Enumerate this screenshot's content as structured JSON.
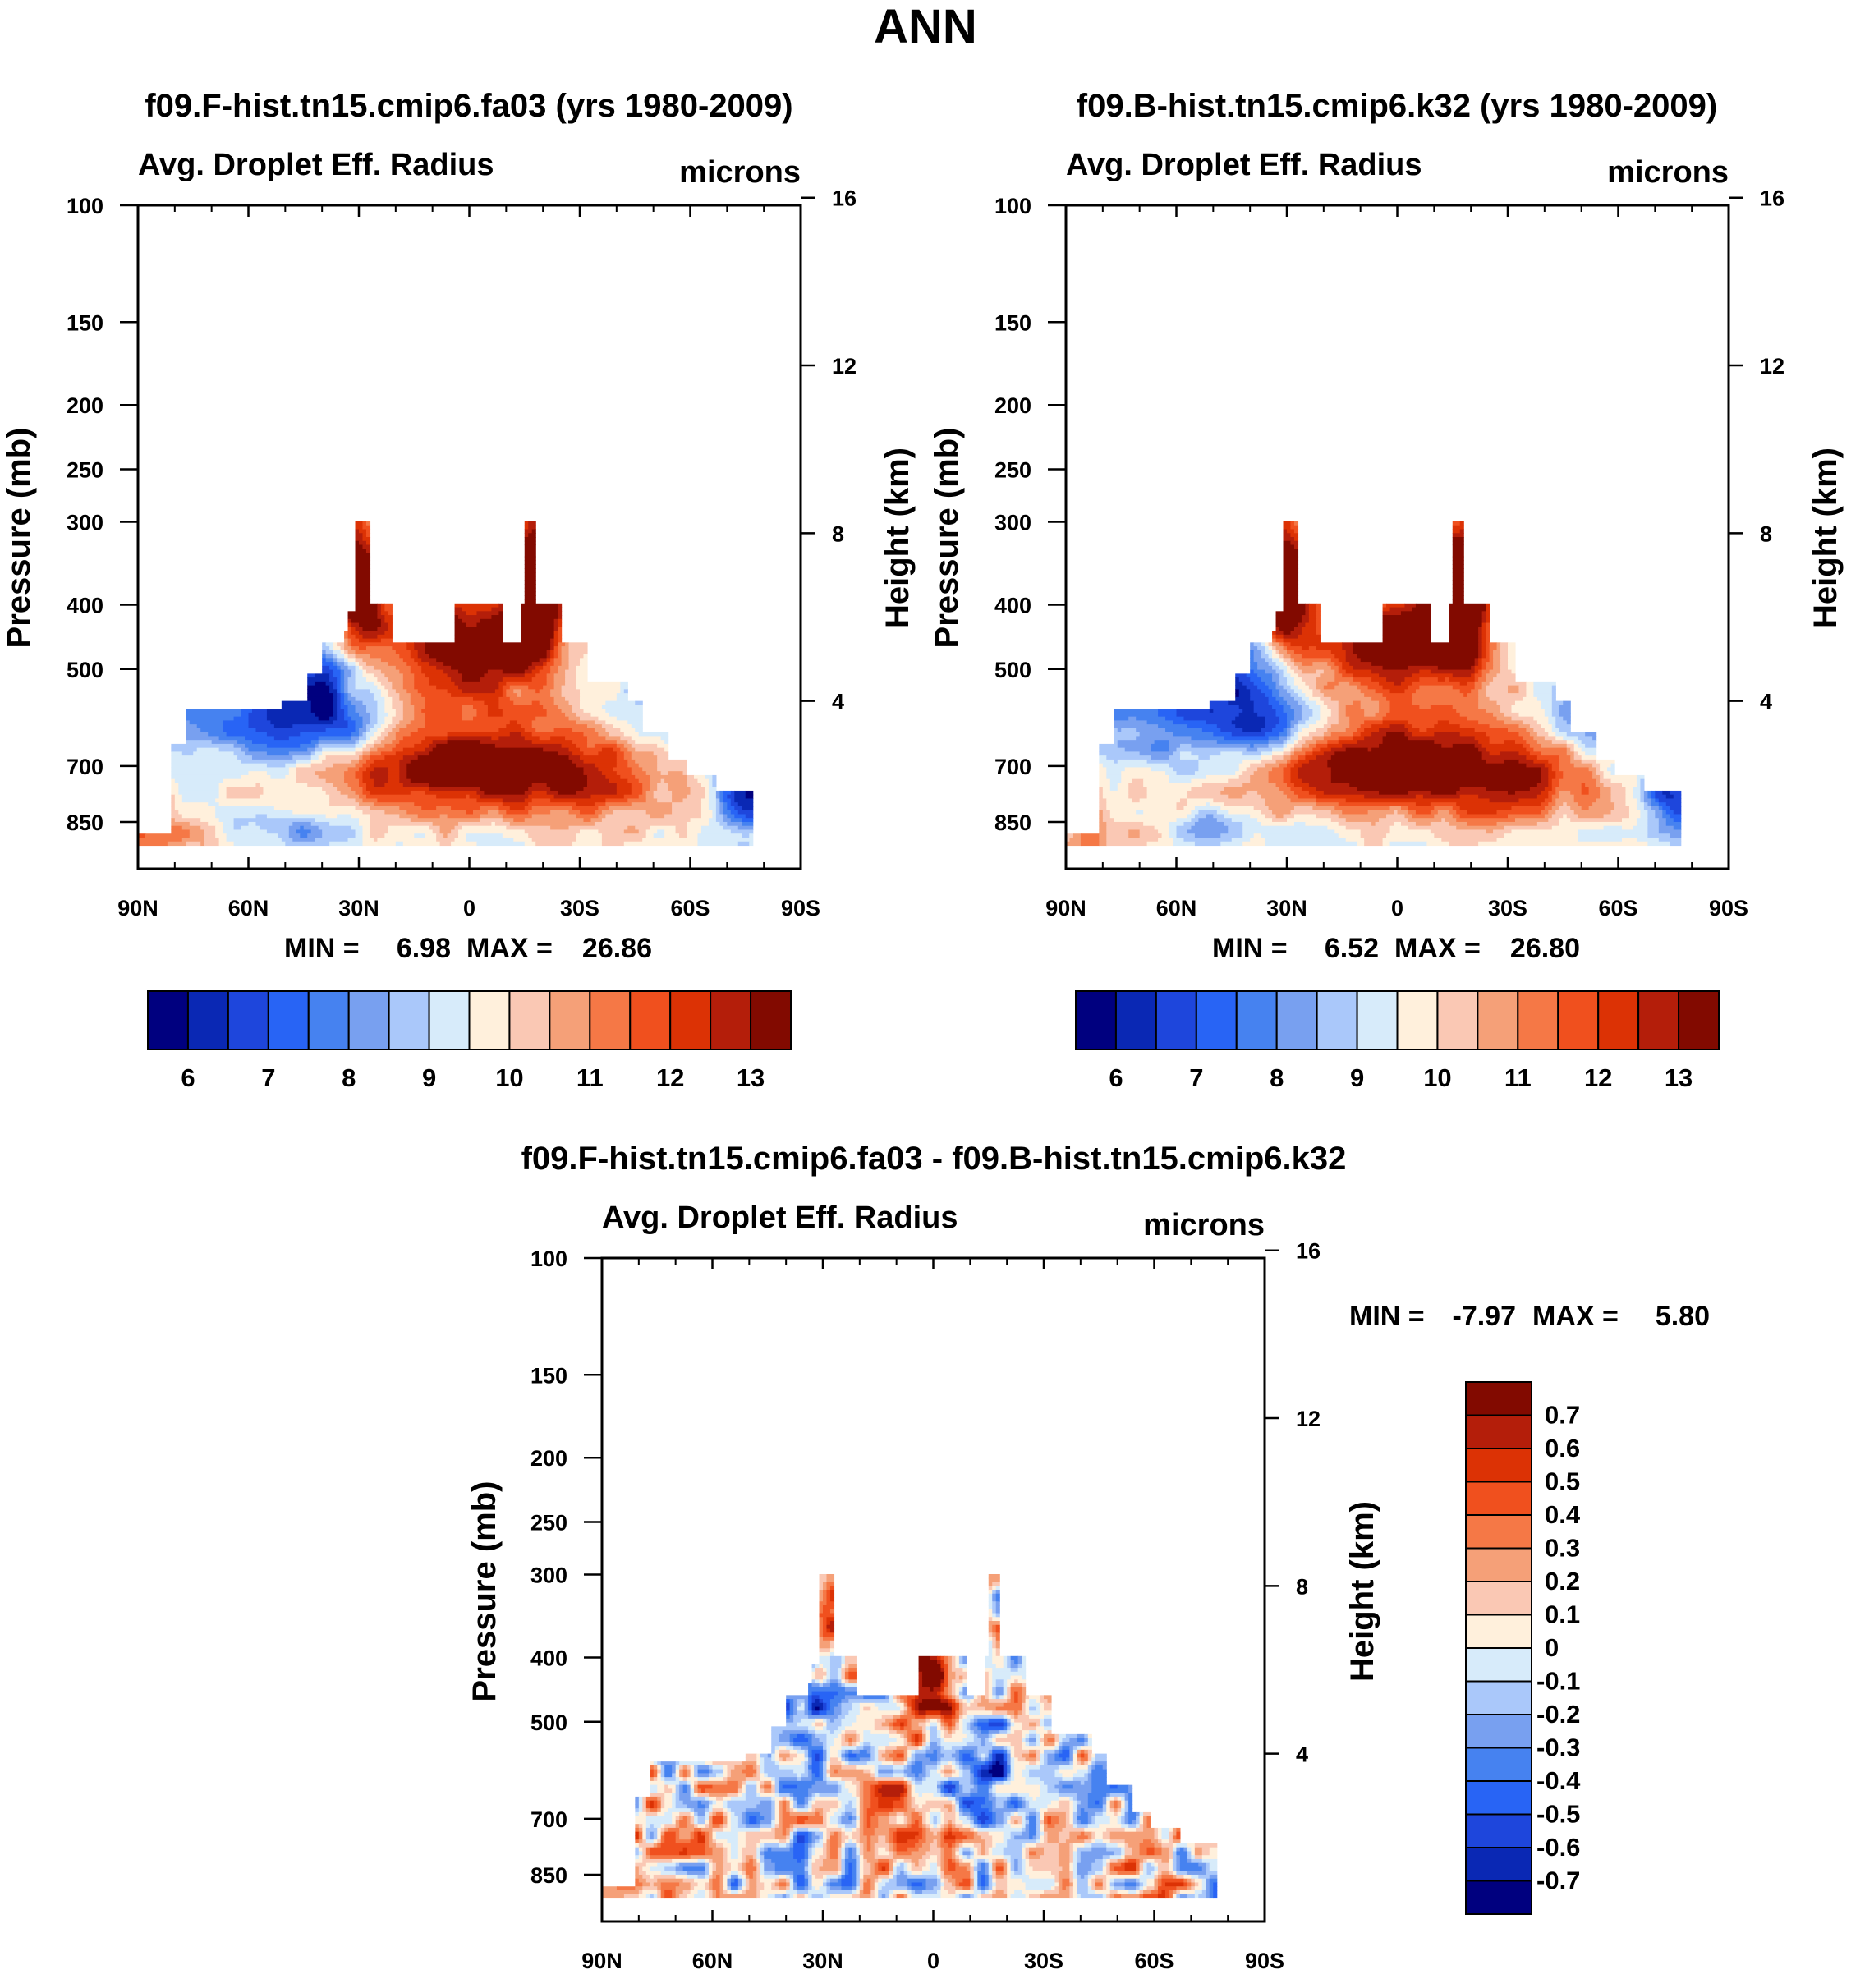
{
  "title": "ANN",
  "chart_data": [
    {
      "type": "heatmap",
      "title": "f09.F-hist.tn15.cmip6.fa03 (yrs 1980-2009)",
      "left_string": "Avg. Droplet Eff. Radius",
      "right_string": "microns",
      "xlabel": "",
      "ylabel": "Pressure (mb)",
      "ylabel_right": "Height (km)",
      "x_ticks": [
        "90N",
        "60N",
        "30N",
        "0",
        "30S",
        "60S",
        "90S"
      ],
      "y_ticks": [
        "100",
        "150",
        "200",
        "250",
        "300",
        "400",
        "500",
        "700",
        "850"
      ],
      "y_right_ticks": [
        "16",
        "12",
        "8",
        "4"
      ],
      "stats": {
        "min_label": "MIN =",
        "min": "6.98",
        "max_label": "MAX =",
        "max": "26.86"
      },
      "colorbar_labels": [
        "6",
        "7",
        "8",
        "9",
        "10",
        "11",
        "12",
        "13"
      ],
      "colors": [
        "#00007f",
        "#0a28b4",
        "#1e46dc",
        "#2864f5",
        "#4682f0",
        "#78a0f0",
        "#aac8fa",
        "#d7ebfa",
        "#fff0dc",
        "#fac8b4",
        "#f5a078",
        "#f57846",
        "#f0501e",
        "#dc3205",
        "#b41e0a",
        "#820a00"
      ]
    },
    {
      "type": "heatmap",
      "title": "f09.B-hist.tn15.cmip6.k32 (yrs 1980-2009)",
      "left_string": "Avg. Droplet Eff. Radius",
      "right_string": "microns",
      "xlabel": "",
      "ylabel": "Pressure (mb)",
      "ylabel_right": "Height (km)",
      "x_ticks": [
        "90N",
        "60N",
        "30N",
        "0",
        "30S",
        "60S",
        "90S"
      ],
      "y_ticks": [
        "100",
        "150",
        "200",
        "250",
        "300",
        "400",
        "500",
        "700",
        "850"
      ],
      "y_right_ticks": [
        "16",
        "12",
        "8",
        "4"
      ],
      "stats": {
        "min_label": "MIN =",
        "min": "6.52",
        "max_label": "MAX =",
        "max": "26.80"
      },
      "colorbar_labels": [
        "6",
        "7",
        "8",
        "9",
        "10",
        "11",
        "12",
        "13"
      ],
      "colors": [
        "#00007f",
        "#0a28b4",
        "#1e46dc",
        "#2864f5",
        "#4682f0",
        "#78a0f0",
        "#aac8fa",
        "#d7ebfa",
        "#fff0dc",
        "#fac8b4",
        "#f5a078",
        "#f57846",
        "#f0501e",
        "#dc3205",
        "#b41e0a",
        "#820a00"
      ]
    },
    {
      "type": "heatmap",
      "title": "f09.F-hist.tn15.cmip6.fa03 - f09.B-hist.tn15.cmip6.k32",
      "left_string": "Avg. Droplet Eff. Radius",
      "right_string": "microns",
      "xlabel": "",
      "ylabel": "Pressure (mb)",
      "ylabel_right": "Height (km)",
      "x_ticks": [
        "90N",
        "60N",
        "30N",
        "0",
        "30S",
        "60S",
        "90S"
      ],
      "y_ticks": [
        "100",
        "150",
        "200",
        "250",
        "300",
        "400",
        "500",
        "700",
        "850"
      ],
      "y_right_ticks": [
        "16",
        "12",
        "8",
        "4"
      ],
      "stats": {
        "min_label": "MIN =",
        "min": "-7.97",
        "max_label": "MAX =",
        "max": "5.80"
      },
      "colorbar_labels": [
        "0.7",
        "0.6",
        "0.5",
        "0.4",
        "0.3",
        "0.2",
        "0.1",
        "0",
        "-0.1",
        "-0.2",
        "-0.3",
        "-0.4",
        "-0.5",
        "-0.6",
        "-0.7"
      ],
      "colors": [
        "#00007f",
        "#0a28b4",
        "#1e46dc",
        "#2864f5",
        "#4682f0",
        "#78a0f0",
        "#aac8fa",
        "#d7ebfa",
        "#fff0dc",
        "#fac8b4",
        "#f5a078",
        "#f57846",
        "#f0501e",
        "#dc3205",
        "#b41e0a",
        "#820a00"
      ]
    }
  ]
}
